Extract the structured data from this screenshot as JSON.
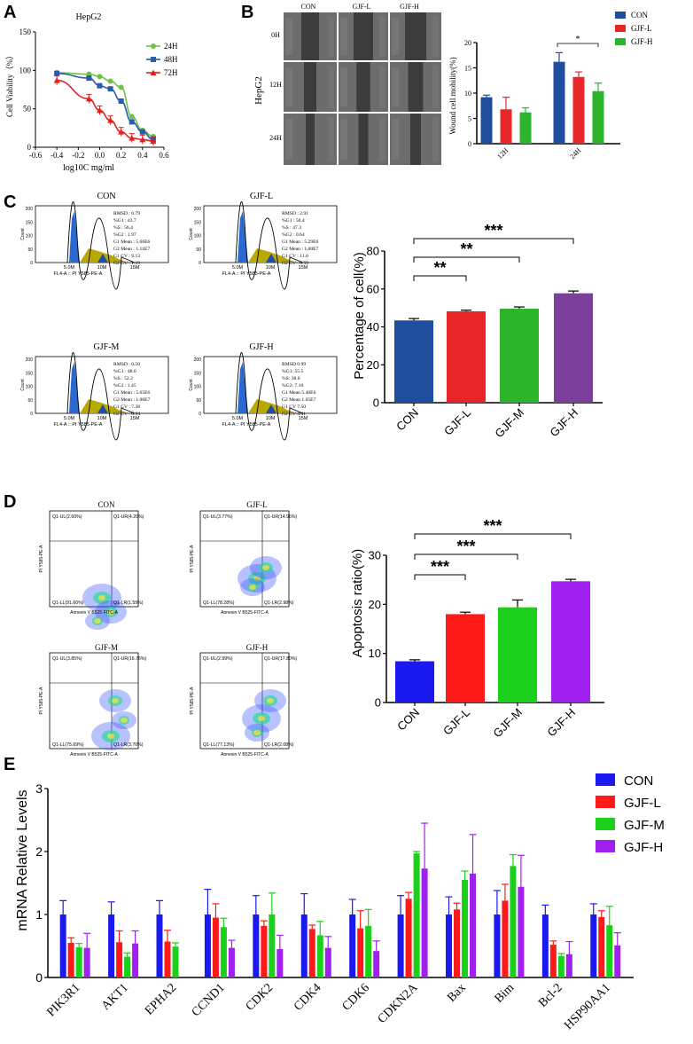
{
  "colors": {
    "con": "#1f4e9e",
    "gjfl": "#e8262a",
    "gjfm": "#2cb52c",
    "gjfh": "#7b3f9c",
    "e_con": "#1a1af0",
    "e_gjfl": "#ff1a1a",
    "e_gjfm": "#1ad01a",
    "e_gjfh": "#a020f0",
    "g24": "#6cc24a",
    "g48": "#2a5caa",
    "g72": "#e02020"
  },
  "panels": {
    "a": "A",
    "b": "B",
    "c": "C",
    "d": "D",
    "e": "E"
  },
  "chart_data": [
    {
      "id": "A",
      "type": "line",
      "title": "HepG2",
      "xlabel": "log10C mg/ml",
      "ylabel": "Cell Viability（%）",
      "xlim": [
        -0.6,
        0.6
      ],
      "ylim": [
        0,
        150
      ],
      "xticks": [
        "-0.6",
        "-0.4",
        "-0.2",
        "0.0",
        "0.2",
        "0.4",
        "0.6"
      ],
      "yticks": [
        "0",
        "50",
        "100",
        "150"
      ],
      "series": [
        {
          "name": "24H",
          "x": [
            -0.4,
            -0.1,
            0.0,
            0.1,
            0.2,
            0.3,
            0.4,
            0.5
          ],
          "y": [
            97,
            95,
            92,
            86,
            78,
            40,
            22,
            14
          ]
        },
        {
          "name": "48H",
          "x": [
            -0.4,
            -0.1,
            0.0,
            0.1,
            0.2,
            0.3,
            0.4,
            0.5
          ],
          "y": [
            96,
            90,
            80,
            76,
            60,
            33,
            20,
            10
          ]
        },
        {
          "name": "72H",
          "x": [
            -0.4,
            -0.1,
            0.0,
            0.1,
            0.2,
            0.3,
            0.4,
            0.5
          ],
          "y": [
            87,
            63,
            48,
            35,
            20,
            12,
            10,
            8
          ]
        }
      ]
    },
    {
      "id": "B",
      "type": "bar",
      "ylabel": "Wound cell mobility(%)",
      "categories": [
        "12H",
        "24H"
      ],
      "ylim": [
        0,
        20
      ],
      "yticks": [
        "0",
        "5",
        "10",
        "15",
        "20"
      ],
      "series": [
        {
          "name": "CON",
          "values": [
            9.2,
            16.2
          ],
          "err": [
            0.4,
            1.8
          ]
        },
        {
          "name": "GJF-L",
          "values": [
            6.8,
            13.2
          ],
          "err": [
            2.4,
            1.0
          ]
        },
        {
          "name": "GJF-H",
          "values": [
            6.2,
            10.4
          ],
          "err": [
            0.9,
            1.6
          ]
        }
      ],
      "significance": [
        {
          "label": "*"
        }
      ]
    },
    {
      "id": "C",
      "type": "bar",
      "ylabel": "Percentage of cell(%)",
      "categories": [
        "CON",
        "GJF-L",
        "GJF-M",
        "GJF-H"
      ],
      "values": [
        43.4,
        48.2,
        49.6,
        57.7
      ],
      "err": [
        1.0,
        0.6,
        0.9,
        1.2
      ],
      "ylim": [
        0,
        80
      ],
      "yticks": [
        "0",
        "20",
        "40",
        "60",
        "80"
      ],
      "significance": [
        {
          "label": "**"
        },
        {
          "label": "**"
        },
        {
          "label": "***"
        }
      ]
    },
    {
      "id": "D",
      "type": "bar",
      "ylabel": "Apoptosis ratio(%)",
      "categories": [
        "CON",
        "GJF-L",
        "GJF-M",
        "GJF-H"
      ],
      "values": [
        8.4,
        18.0,
        19.4,
        24.7
      ],
      "err": [
        0.3,
        0.4,
        1.5,
        0.4
      ],
      "ylim": [
        0,
        30
      ],
      "yticks": [
        "0",
        "10",
        "20",
        "30"
      ],
      "significance": [
        {
          "label": "***"
        },
        {
          "label": "***"
        },
        {
          "label": "***"
        }
      ]
    },
    {
      "id": "E",
      "type": "bar",
      "ylabel": "mRNA Relative Levels",
      "categories": [
        "PIK3R1",
        "AKT1",
        "EPHA2",
        "CCND1",
        "CDK2",
        "CDK4",
        "CDK6",
        "CDKN2A",
        "Bax",
        "Bim",
        "Bcl-2",
        "HSP90AA1"
      ],
      "ylim": [
        0,
        3
      ],
      "yticks": [
        "0",
        "1",
        "2",
        "3"
      ],
      "series": [
        {
          "name": "CON",
          "values": [
            1.0,
            1.0,
            1.0,
            1.0,
            1.0,
            1.0,
            1.0,
            1.0,
            1.0,
            1.0,
            1.0,
            1.0
          ],
          "err": [
            0.22,
            0.2,
            0.22,
            0.4,
            0.3,
            0.33,
            0.24,
            0.3,
            0.28,
            0.38,
            0.15,
            0.17
          ]
        },
        {
          "name": "GJF-L",
          "values": [
            0.55,
            0.56,
            0.57,
            0.95,
            0.82,
            0.77,
            0.78,
            1.25,
            1.08,
            1.22,
            0.52,
            0.96
          ]
        },
        {
          "name": "GJF-M",
          "values": [
            0.48,
            0.33,
            0.49,
            0.8,
            1.0,
            0.67,
            0.82,
            1.97,
            1.55,
            1.77,
            0.34,
            0.83
          ]
        },
        {
          "name": "GJF-H",
          "values": [
            0.47,
            0.54,
            0.0,
            0.47,
            0.45,
            0.47,
            0.42,
            1.73,
            1.65,
            1.44,
            0.37,
            0.51
          ]
        }
      ],
      "errs": {
        "gjfl": [
          0.08,
          0.18,
          0.18,
          0.22,
          0.08,
          0.06,
          0.28,
          0.1,
          0.1,
          0.26,
          0.06,
          0.1
        ],
        "gjfm": [
          0.06,
          0.06,
          0.06,
          0.14,
          0.34,
          0.22,
          0.26,
          0.03,
          0.14,
          0.18,
          0.04,
          0.3
        ],
        "gjfh": [
          0.23,
          0.2,
          0.0,
          0.12,
          0.22,
          0.18,
          0.16,
          0.72,
          0.62,
          0.5,
          0.2,
          0.2
        ]
      }
    }
  ],
  "panel_b": {
    "label": "HepG2",
    "cols": [
      "CON",
      "GJF-L",
      "GJF-H"
    ],
    "rows": [
      "0H",
      "12H",
      "24H"
    ]
  },
  "flow_c": [
    {
      "title": "CON",
      "stats": [
        "RMSD : 0.79",
        "%G1 : 43.7",
        "%S : 56.4",
        "%G2 : 1.97",
        "G1 Mean : 5.66E6",
        "G2 Mean : 1.11E7",
        "G1 CV : 9.13",
        "G2 CV : 1.19"
      ]
    },
    {
      "title": "GJF-L",
      "stats": [
        "RMSD : 2.91",
        "%G1 : 50.4",
        "%S : 47.3",
        "%G2 : 0.64",
        "G1 Mean : 5.29E6",
        "G2 Mean : 1.00E7",
        "G1 CV : 11.0",
        "G2 CV : 0.59"
      ]
    },
    {
      "title": "GJF-M",
      "stats": [
        "RMSD : 0.50",
        "%G1 : 48.0",
        "%S : 52.2",
        "%G2 : 1.45",
        "G1 Mean : 5.65E6",
        "G2 Mean : 1.06E7",
        "G1 CV : 7.38",
        "G2 CV : 0.94"
      ]
    },
    {
      "title": "GJF-H",
      "stats": [
        "RMSD 0.99",
        "%G1: 55.5",
        "%S: 38.0",
        "%G2: 7.10",
        "G1 Mean 5.40E6",
        "G2 Mean 1.05E7",
        "G1 CV 7.50",
        "G2 CV 4.41"
      ]
    }
  ],
  "flow_axis": {
    "xlabel": "FL4-A :: PI Y585-PE-A",
    "ylabel": "Count",
    "xticks": [
      "5.0M",
      "10M",
      "15M"
    ],
    "yticks": [
      "0",
      "50",
      "100",
      "150",
      "200"
    ]
  },
  "apop_d": [
    {
      "title": "CON",
      "q": [
        "Q1-UL(2.60%)",
        "Q1-UR(4.20%)",
        "Q1-LL(91.60%)",
        "Q1-LR(1.59%)"
      ]
    },
    {
      "title": "GJF-L",
      "q": [
        "Q1-UL(3.77%)",
        "Q1-UR(14.96%)",
        "Q1-LL(78.28%)",
        "Q1-LR(2.98%)"
      ]
    },
    {
      "title": "GJF-M",
      "q": [
        "Q1-UL(3.85%)",
        "Q1-UR(16.76%)",
        "Q1-LL(75.69%)",
        "Q1-LR(3.70%)"
      ]
    },
    {
      "title": "GJF-H",
      "q": [
        "Q1-UL(2.99%)",
        "Q1-UR(17.80%)",
        "Q1-LL(77.13%)",
        "Q1-LR(2.08%)"
      ]
    }
  ],
  "apop_axis": {
    "xlabel": "Annexin V  B525-FITC-A",
    "ylabel": "PI Y585-PE-A"
  }
}
